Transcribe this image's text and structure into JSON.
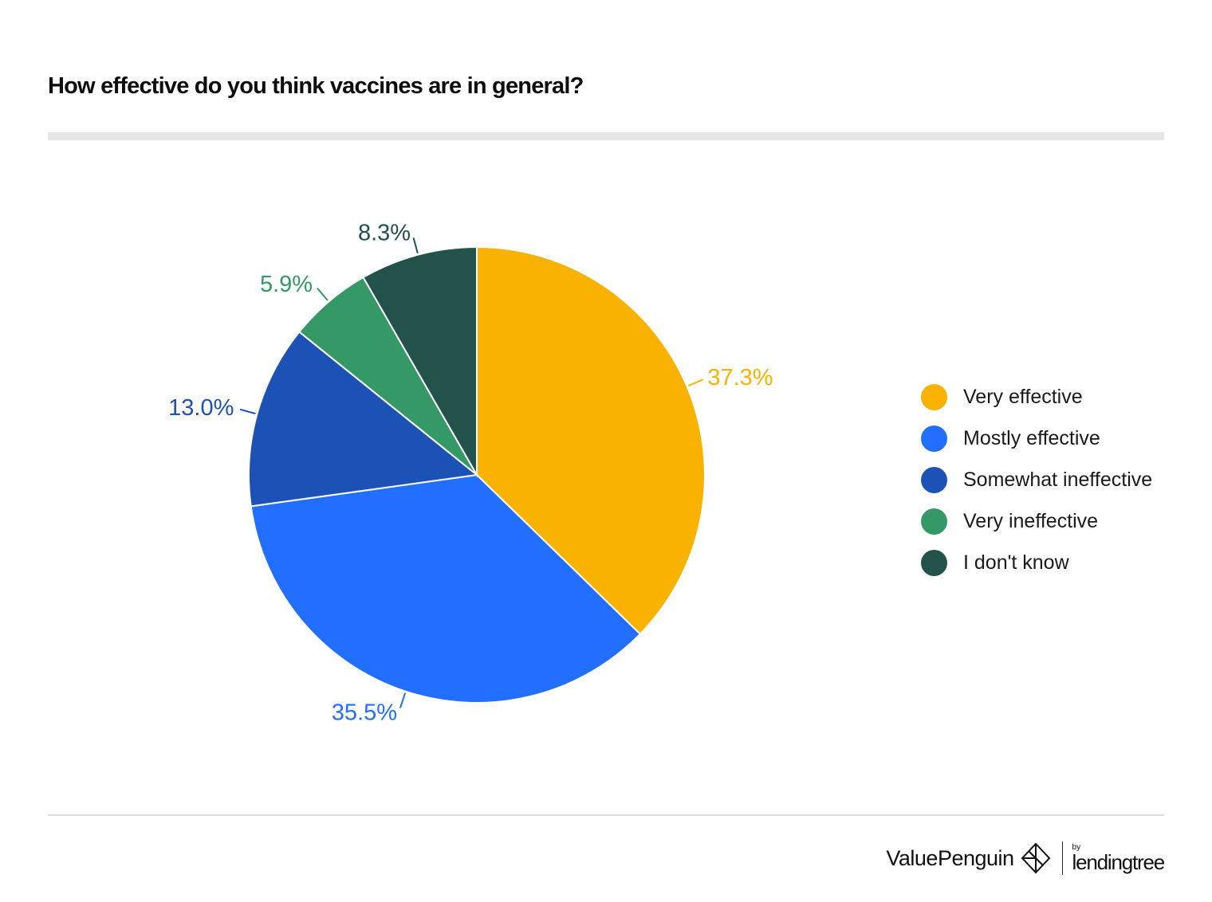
{
  "title": "How effective do you think vaccines are in general?",
  "chart_data": {
    "type": "pie",
    "title": "How effective do you think vaccines are in general?",
    "slices": [
      {
        "label": "Very effective",
        "value": 37.3,
        "display": "37.3%",
        "color": "#F9B200"
      },
      {
        "label": "Mostly effective",
        "value": 35.5,
        "display": "35.5%",
        "color": "#216EFF"
      },
      {
        "label": "Somewhat ineffective",
        "value": 13.0,
        "display": "13.0%",
        "color": "#1C52B5"
      },
      {
        "label": "Very ineffective",
        "value": 5.9,
        "display": "5.9%",
        "color": "#349966"
      },
      {
        "label": "I don't know",
        "value": 8.3,
        "display": "8.3%",
        "color": "#22524A"
      }
    ],
    "legend_position": "right"
  },
  "footer": {
    "brand": "ValuePenguin",
    "by": "by",
    "partner": "lendingtree"
  }
}
